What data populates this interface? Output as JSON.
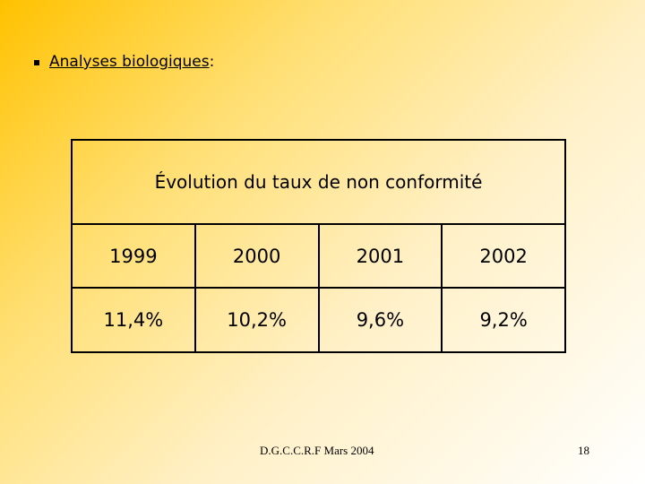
{
  "heading": {
    "text": "Analyses biologiques",
    "suffix": ":"
  },
  "table": {
    "title": "Évolution du taux de non conformité",
    "years": [
      "1999",
      "2000",
      "2001",
      "2002"
    ],
    "rates": [
      "11,4%",
      "10,2%",
      "9,6%",
      "9,2%"
    ]
  },
  "footer": {
    "text": "D.G.C.C.R.F Mars 2004",
    "page": "18"
  },
  "colors": {
    "gradient_start": "#ffc200",
    "gradient_end": "#ffffff"
  }
}
